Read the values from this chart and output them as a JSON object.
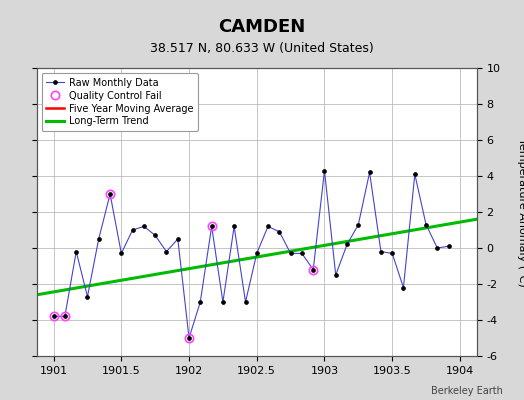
{
  "title": "CAMDEN",
  "subtitle": "38.517 N, 80.633 W (United States)",
  "ylabel": "Temperature Anomaly (°C)",
  "watermark": "Berkeley Earth",
  "xlim": [
    1900.875,
    1904.125
  ],
  "ylim": [
    -6,
    10
  ],
  "yticks": [
    -6,
    -4,
    -2,
    0,
    2,
    4,
    6,
    8,
    10
  ],
  "xticks": [
    1901,
    1901.5,
    1902,
    1902.5,
    1903,
    1903.5,
    1904
  ],
  "background_color": "#d8d8d8",
  "plot_bg_color": "#ffffff",
  "raw_x": [
    1901.0,
    1901.083,
    1901.167,
    1901.25,
    1901.333,
    1901.417,
    1901.5,
    1901.583,
    1901.667,
    1901.75,
    1901.833,
    1901.917,
    1902.0,
    1902.083,
    1902.167,
    1902.25,
    1902.333,
    1902.417,
    1902.5,
    1902.583,
    1902.667,
    1902.75,
    1902.833,
    1902.917,
    1903.0,
    1903.083,
    1903.167,
    1903.25,
    1903.333,
    1903.417,
    1903.5,
    1903.583,
    1903.667,
    1903.75,
    1903.833,
    1903.917
  ],
  "raw_y": [
    -3.8,
    -3.8,
    -0.2,
    -2.7,
    0.5,
    3.0,
    -0.3,
    1.0,
    1.2,
    0.7,
    -0.2,
    0.5,
    -5.0,
    -3.0,
    1.2,
    -3.0,
    1.2,
    -3.0,
    -0.3,
    1.2,
    0.9,
    -0.3,
    -0.3,
    -1.2,
    4.3,
    -1.5,
    0.2,
    1.3,
    4.2,
    -0.2,
    -0.3,
    -2.2,
    4.1,
    1.3,
    0.0,
    0.1
  ],
  "qc_fail_x": [
    1901.0,
    1901.083,
    1901.417,
    1902.0,
    1902.167,
    1902.917
  ],
  "qc_fail_y": [
    -3.8,
    -3.8,
    3.0,
    -5.0,
    1.2,
    -1.2
  ],
  "trend_x": [
    1900.875,
    1904.125
  ],
  "trend_y": [
    -2.6,
    1.6
  ],
  "raw_line_color": "#4444cc",
  "raw_marker_color": "#000000",
  "qc_color": "#ff44ff",
  "trend_color": "#00bb00",
  "moving_avg_color": "#ff0000",
  "grid_color": "#bbbbbb",
  "title_fontsize": 13,
  "subtitle_fontsize": 9,
  "tick_fontsize": 8,
  "ylabel_fontsize": 8
}
